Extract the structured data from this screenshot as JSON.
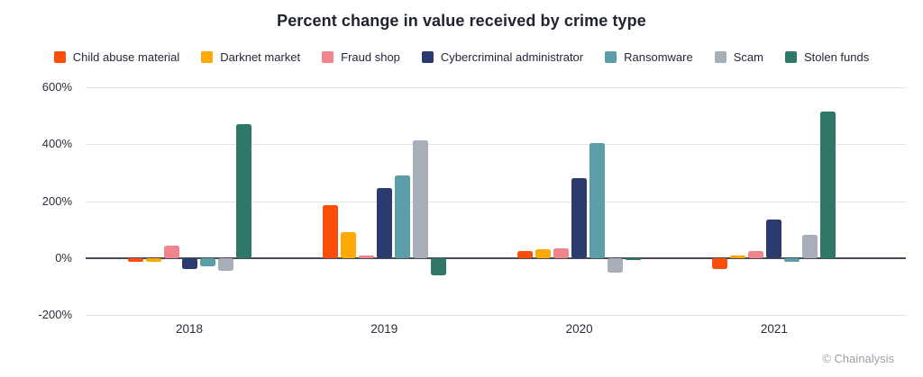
{
  "title": "Percent change in value received by crime type",
  "footer": {
    "credit": "© Chainalysis"
  },
  "chart_data": {
    "type": "bar",
    "title": "Percent change in value received by crime type",
    "categories": [
      "2018",
      "2019",
      "2020",
      "2021"
    ],
    "series": [
      {
        "name": "Child abuse material",
        "color": "#FB4E0B",
        "values": [
          -15,
          185,
          25,
          -40
        ]
      },
      {
        "name": "Darknet market",
        "color": "#FCA903",
        "values": [
          -15,
          90,
          30,
          10
        ]
      },
      {
        "name": "Fraud shop",
        "color": "#F0858E",
        "values": [
          45,
          10,
          35,
          25
        ]
      },
      {
        "name": "Cybercriminal administrator",
        "color": "#2B3B6E",
        "values": [
          -40,
          245,
          280,
          135
        ]
      },
      {
        "name": "Ransomware",
        "color": "#5C9EA8",
        "values": [
          -30,
          290,
          405,
          -15
        ]
      },
      {
        "name": "Scam",
        "color": "#A8AEBA",
        "values": [
          -45,
          415,
          -50,
          80
        ]
      },
      {
        "name": "Stolen funds",
        "color": "#2F7767",
        "values": [
          470,
          -60,
          -5,
          515
        ]
      }
    ],
    "xlabel": "",
    "ylabel": "",
    "ylim": [
      -200,
      600
    ],
    "ytick_labels": [
      "600%",
      "400%",
      "200%",
      "0%",
      "-200%"
    ],
    "ytick_values": [
      600,
      400,
      200,
      0,
      -200
    ],
    "grid": true,
    "legend_position": "top"
  },
  "colors": {
    "background": "#FFFFFF",
    "grid": "#E3E4E6",
    "zero_axis": "#484C55",
    "text": "#20242E",
    "muted": "#9CA1A9"
  }
}
